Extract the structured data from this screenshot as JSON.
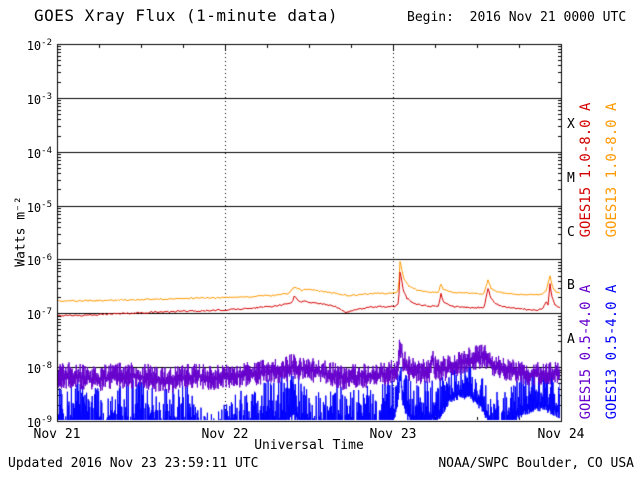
{
  "header": {
    "title": "GOES Xray Flux (1-minute data)",
    "begin": "Begin:  2016 Nov 21 0000 UTC"
  },
  "footer": {
    "updated": "Updated 2016 Nov 23 23:59:11 UTC",
    "source": "NOAA/SWPC Boulder, CO USA"
  },
  "colors": {
    "axis": "#000000",
    "background": "#ffffff",
    "goes15_long": "#d40000",
    "goes13_long": "#ff9900",
    "goes15_short": "#6600cc",
    "goes13_short": "#0000ff"
  },
  "chart_data": {
    "type": "line",
    "title": "GOES Xray Flux (1-minute data)",
    "xlabel": "Universal Time",
    "ylabel": "Watts m⁻²",
    "log_y": true,
    "xlim_hours": [
      0,
      72
    ],
    "ylim": [
      1e-09,
      0.01
    ],
    "x_ticks": [
      {
        "hours": 0,
        "label": "Nov 21"
      },
      {
        "hours": 24,
        "label": "Nov 22"
      },
      {
        "hours": 48,
        "label": "Nov 23"
      },
      {
        "hours": 72,
        "label": "Nov 24"
      }
    ],
    "y_tick_exponents": [
      -2,
      -3,
      -4,
      -5,
      -6,
      -7,
      -8,
      -9
    ],
    "flare_classes": [
      {
        "label": "X",
        "range": [
          0.0001,
          0.001
        ]
      },
      {
        "label": "M",
        "range": [
          1e-05,
          0.0001
        ]
      },
      {
        "label": "C",
        "range": [
          1e-06,
          1e-05
        ]
      },
      {
        "label": "B",
        "range": [
          1e-07,
          1e-06
        ]
      },
      {
        "label": "A",
        "range": [
          1e-08,
          1e-07
        ]
      }
    ],
    "grid": {
      "h_lines_at": [
        0.001,
        0.0001,
        1e-05,
        1e-06,
        1e-07,
        1e-08
      ],
      "v_dotted_at_hours": [
        24,
        48
      ]
    },
    "series": [
      {
        "name": "GOES15 1.0-8.0 A",
        "color": "#d40000",
        "style": "line",
        "points": [
          [
            0,
            9e-08
          ],
          [
            2,
            9.2e-08
          ],
          [
            4,
            9.1e-08
          ],
          [
            6,
            9.5e-08
          ],
          [
            8,
            9.8e-08
          ],
          [
            10,
            1e-07
          ],
          [
            12,
            1.02e-07
          ],
          [
            14,
            1.05e-07
          ],
          [
            16,
            1.06e-07
          ],
          [
            18,
            1.1e-07
          ],
          [
            20,
            1.1e-07
          ],
          [
            22,
            1.12e-07
          ],
          [
            24,
            1.15e-07
          ],
          [
            26,
            1.2e-07
          ],
          [
            28,
            1.26e-07
          ],
          [
            30,
            1.32e-07
          ],
          [
            31.5,
            1.4e-07
          ],
          [
            33,
            1.5e-07
          ],
          [
            33.6,
            1.6e-07
          ],
          [
            33.9,
            2.1e-07
          ],
          [
            34.3,
            1.85e-07
          ],
          [
            34.8,
            1.6e-07
          ],
          [
            35.3,
            1.7e-07
          ],
          [
            36,
            1.6e-07
          ],
          [
            37,
            1.55e-07
          ],
          [
            38.5,
            1.45e-07
          ],
          [
            40,
            1.3e-07
          ],
          [
            41.2,
            1.05e-07
          ],
          [
            42,
            1.1e-07
          ],
          [
            43,
            1.2e-07
          ],
          [
            44.5,
            1.28e-07
          ],
          [
            46,
            1.32e-07
          ],
          [
            47.5,
            1.32e-07
          ],
          [
            48.5,
            1.38e-07
          ],
          [
            48.8,
            1.6e-07
          ],
          [
            49.0,
            6e-07
          ],
          [
            49.15,
            4.8e-07
          ],
          [
            49.5,
            2.6e-07
          ],
          [
            50,
            1.9e-07
          ],
          [
            50.8,
            1.55e-07
          ],
          [
            52,
            1.4e-07
          ],
          [
            53.5,
            1.35e-07
          ],
          [
            54.5,
            1.38e-07
          ],
          [
            54.85,
            2.3e-07
          ],
          [
            55.2,
            1.6e-07
          ],
          [
            56.5,
            1.35e-07
          ],
          [
            58,
            1.3e-07
          ],
          [
            59.5,
            1.26e-07
          ],
          [
            61,
            1.3e-07
          ],
          [
            61.6,
            3e-07
          ],
          [
            61.9,
            2e-07
          ],
          [
            62.6,
            1.5e-07
          ],
          [
            64,
            1.3e-07
          ],
          [
            65.5,
            1.22e-07
          ],
          [
            67,
            1.18e-07
          ],
          [
            68.5,
            1.15e-07
          ],
          [
            69.3,
            1.2e-07
          ],
          [
            69.9,
            1.7e-07
          ],
          [
            70.2,
            1.4e-07
          ],
          [
            70.4,
            3.7e-07
          ],
          [
            70.7,
            2e-07
          ],
          [
            71.2,
            1.4e-07
          ],
          [
            71.7,
            1.3e-07
          ],
          [
            72,
            1.28e-07
          ]
        ],
        "noise": {
          "jitter_log10": 0.03
        }
      },
      {
        "name": "GOES13 1.0-8.0 A",
        "color": "#ff9900",
        "style": "line",
        "points": [
          [
            0,
            1.7e-07
          ],
          [
            3,
            1.7e-07
          ],
          [
            6,
            1.72e-07
          ],
          [
            9,
            1.76e-07
          ],
          [
            12,
            1.8e-07
          ],
          [
            15,
            1.84e-07
          ],
          [
            18,
            1.88e-07
          ],
          [
            21,
            1.92e-07
          ],
          [
            24,
            1.96e-07
          ],
          [
            27,
            2.02e-07
          ],
          [
            30,
            2.12e-07
          ],
          [
            31.5,
            2.2e-07
          ],
          [
            33,
            2.3e-07
          ],
          [
            33.9,
            3.1e-07
          ],
          [
            34.4,
            2.85e-07
          ],
          [
            35,
            2.7e-07
          ],
          [
            36,
            2.75e-07
          ],
          [
            37.5,
            2.6e-07
          ],
          [
            39,
            2.45e-07
          ],
          [
            40.5,
            2.25e-07
          ],
          [
            41.5,
            2.1e-07
          ],
          [
            43,
            2.2e-07
          ],
          [
            45,
            2.3e-07
          ],
          [
            47,
            2.32e-07
          ],
          [
            48.5,
            2.4e-07
          ],
          [
            48.8,
            2.8e-07
          ],
          [
            49.0,
            9e-07
          ],
          [
            49.2,
            7e-07
          ],
          [
            49.6,
            4.2e-07
          ],
          [
            50.3,
            3.2e-07
          ],
          [
            51.5,
            2.7e-07
          ],
          [
            53,
            2.5e-07
          ],
          [
            54.5,
            2.45e-07
          ],
          [
            54.85,
            3.6e-07
          ],
          [
            55.2,
            2.7e-07
          ],
          [
            56.5,
            2.45e-07
          ],
          [
            58,
            2.4e-07
          ],
          [
            60,
            2.3e-07
          ],
          [
            61,
            2.35e-07
          ],
          [
            61.6,
            4.2e-07
          ],
          [
            62,
            2.9e-07
          ],
          [
            62.8,
            2.5e-07
          ],
          [
            64,
            2.35e-07
          ],
          [
            66,
            2.25e-07
          ],
          [
            68,
            2.2e-07
          ],
          [
            69.3,
            2.25e-07
          ],
          [
            69.9,
            2.6e-07
          ],
          [
            70.4,
            5e-07
          ],
          [
            70.8,
            3e-07
          ],
          [
            71.3,
            2.5e-07
          ],
          [
            71.8,
            2.4e-07
          ],
          [
            72,
            2.4e-07
          ]
        ],
        "noise": {
          "jitter_log10": 0.03
        }
      },
      {
        "name": "GOES15 0.5-4.0 A",
        "color": "#6600cc",
        "style": "noisy-band",
        "envelope_t_min_max": [
          [
            0,
            4e-09,
            1.15e-08
          ],
          [
            2,
            4e-09,
            1.25e-08
          ],
          [
            4,
            3.8e-09,
            1.1e-08
          ],
          [
            6,
            3.5e-09,
            1.05e-08
          ],
          [
            8,
            4e-09,
            1.2e-08
          ],
          [
            10,
            4e-09,
            1.25e-08
          ],
          [
            12,
            4e-09,
            1.2e-08
          ],
          [
            14,
            3.5e-09,
            1.1e-08
          ],
          [
            16,
            3.2e-09,
            1e-08
          ],
          [
            18,
            3.8e-09,
            1.15e-08
          ],
          [
            20,
            4e-09,
            1.25e-08
          ],
          [
            22,
            3.5e-09,
            1.05e-08
          ],
          [
            24,
            4e-09,
            1.2e-08
          ],
          [
            26,
            4.2e-09,
            1.3e-08
          ],
          [
            28,
            4.5e-09,
            1.35e-08
          ],
          [
            30,
            5e-09,
            1.45e-08
          ],
          [
            32,
            5e-09,
            1.55e-08
          ],
          [
            33.8,
            6e-09,
            1.9e-08
          ],
          [
            35,
            5.5e-09,
            1.6e-08
          ],
          [
            37,
            5e-09,
            1.45e-08
          ],
          [
            39,
            4.5e-09,
            1.3e-08
          ],
          [
            41,
            3.6e-09,
            1.1e-08
          ],
          [
            43,
            4e-09,
            1.2e-08
          ],
          [
            45,
            4.2e-09,
            1.25e-08
          ],
          [
            47,
            4.5e-09,
            1.3e-08
          ],
          [
            48.6,
            5e-09,
            1.5e-08
          ],
          [
            49.0,
            1.4e-08,
            4e-08
          ],
          [
            49.4,
            8e-09,
            2.2e-08
          ],
          [
            50.5,
            5e-09,
            1.5e-08
          ],
          [
            52,
            4.8e-09,
            1.4e-08
          ],
          [
            53.3,
            5e-09,
            1.5e-08
          ],
          [
            53.6,
            8e-09,
            2.6e-08
          ],
          [
            54,
            5e-09,
            1.6e-08
          ],
          [
            55.5,
            5.5e-09,
            1.6e-08
          ],
          [
            57,
            6.5e-09,
            1.9e-08
          ],
          [
            58.5,
            8e-09,
            2.3e-08
          ],
          [
            60,
            9e-09,
            2.6e-08
          ],
          [
            61.2,
            9e-09,
            2.7e-08
          ],
          [
            62,
            7e-09,
            2e-08
          ],
          [
            63.5,
            5.5e-09,
            1.6e-08
          ],
          [
            65,
            5e-09,
            1.4e-08
          ],
          [
            67,
            4.5e-09,
            1.25e-08
          ],
          [
            69,
            4.5e-09,
            1.25e-08
          ],
          [
            70.5,
            4.8e-09,
            1.3e-08
          ],
          [
            72,
            5e-09,
            1.3e-08
          ]
        ],
        "noise": {
          "hi_base": 0.5,
          "hi_amp": 0.5,
          "lo_amp": 0.45
        }
      },
      {
        "name": "GOES13 0.5-4.0 A",
        "color": "#0000ff",
        "style": "noisy-band",
        "envelope_t_min_max": [
          [
            0,
            5e-10,
            6e-09
          ],
          [
            1.5,
            5e-10,
            4e-09
          ],
          [
            3,
            5e-10,
            7e-09
          ],
          [
            4.5,
            5e-10,
            3e-09
          ],
          [
            6,
            5e-10,
            6e-09
          ],
          [
            7.5,
            4e-10,
            3e-09
          ],
          [
            9,
            5e-10,
            5e-09
          ],
          [
            10.5,
            4e-10,
            6e-09
          ],
          [
            12,
            5e-10,
            8e-09
          ],
          [
            13.5,
            5e-10,
            5e-09
          ],
          [
            15,
            4e-10,
            3.5e-09
          ],
          [
            16.5,
            5e-10,
            5e-09
          ],
          [
            18,
            5e-10,
            6e-09
          ],
          [
            19.5,
            4e-10,
            4e-09
          ],
          [
            21,
            4e-10,
            1.5e-09
          ],
          [
            23,
            4e-10,
            1.5e-09
          ],
          [
            25,
            4e-10,
            3e-09
          ],
          [
            26.5,
            5e-10,
            4.5e-09
          ],
          [
            28,
            5e-10,
            4e-09
          ],
          [
            30,
            5e-10,
            6e-09
          ],
          [
            32,
            6e-10,
            8e-09
          ],
          [
            33.8,
            1e-09,
            1.1e-08
          ],
          [
            35,
            6e-10,
            7e-09
          ],
          [
            36.5,
            5e-10,
            5e-09
          ],
          [
            38,
            5e-10,
            4e-09
          ],
          [
            40,
            5e-10,
            5.5e-09
          ],
          [
            42,
            4e-10,
            3.5e-09
          ],
          [
            44,
            5e-10,
            5e-09
          ],
          [
            46,
            5e-10,
            6.5e-09
          ],
          [
            48,
            8e-10,
            7e-09
          ],
          [
            48.7,
            2e-09,
            1e-08
          ],
          [
            49.0,
            6e-09,
            3.2e-08
          ],
          [
            49.3,
            2e-09,
            1.4e-08
          ],
          [
            50,
            1e-09,
            8e-09
          ],
          [
            51.5,
            6e-10,
            5e-09
          ],
          [
            53,
            8e-10,
            6e-09
          ],
          [
            54.5,
            1e-09,
            7e-09
          ],
          [
            56,
            2e-09,
            9e-09
          ],
          [
            57.5,
            2.5e-09,
            1.1e-08
          ],
          [
            59,
            2.5e-09,
            1.1e-08
          ],
          [
            60.5,
            1.5e-09,
            8e-09
          ],
          [
            62,
            6e-10,
            4e-09
          ],
          [
            63.5,
            5e-10,
            3.5e-09
          ],
          [
            65,
            8e-10,
            6e-09
          ],
          [
            66.5,
            1.2e-09,
            8e-09
          ],
          [
            68,
            1.5e-09,
            9e-09
          ],
          [
            69.5,
            1.5e-09,
            1e-08
          ],
          [
            71,
            1.2e-09,
            9e-09
          ],
          [
            72,
            1e-09,
            8e-09
          ]
        ],
        "noise": {
          "hi_base": 0.2,
          "hi_amp": 0.8,
          "lo_amp": 0.15
        }
      }
    ]
  }
}
